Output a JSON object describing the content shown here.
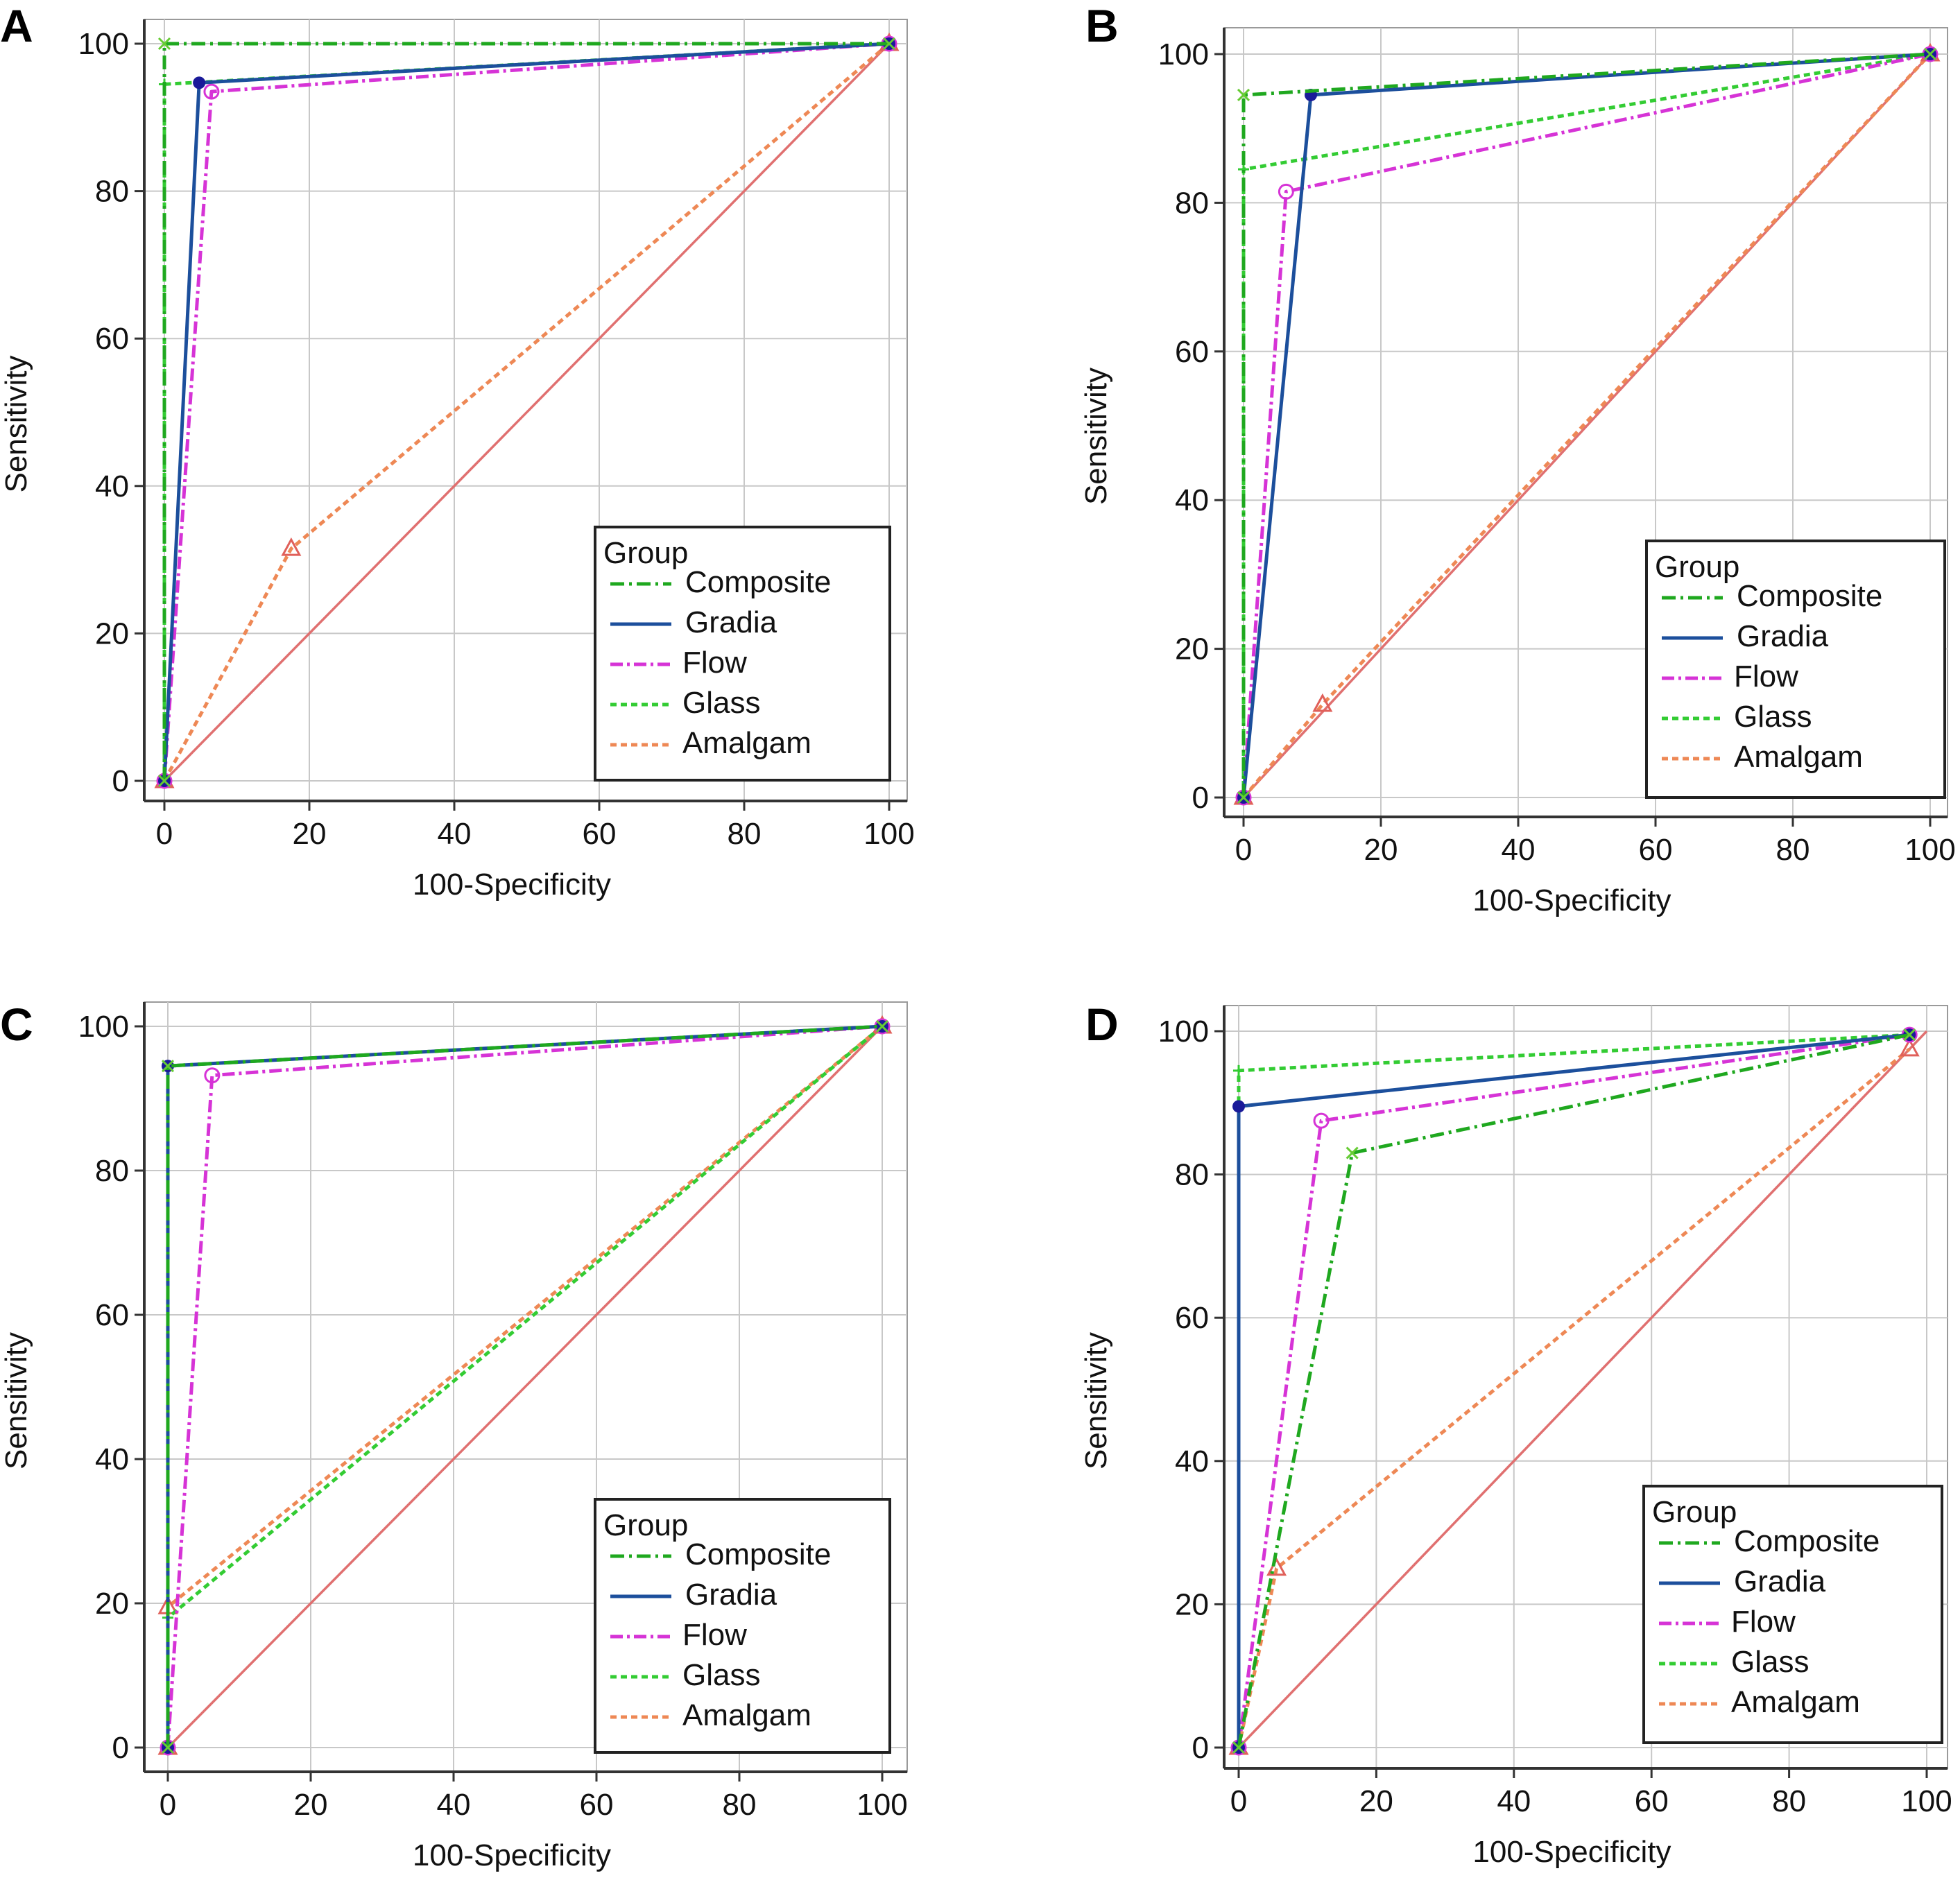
{
  "chart_data": [
    {
      "type": "line",
      "panel": "A",
      "xlabel": "100-Specificity",
      "ylabel": "Sensitivity",
      "xlim": [
        0,
        100
      ],
      "ylim": [
        0,
        100
      ],
      "xticks": [
        "0",
        "20",
        "40",
        "60",
        "80",
        "100"
      ],
      "yticks": [
        "0",
        "20",
        "40",
        "60",
        "80",
        "100"
      ],
      "grid": true,
      "legend_title": "Group",
      "legend_position": "bottom-right",
      "series": [
        {
          "name": "Composite",
          "x": [
            0,
            0,
            100
          ],
          "y": [
            0,
            100,
            100
          ]
        },
        {
          "name": "Gradia",
          "x": [
            0,
            4.8,
            100
          ],
          "y": [
            0,
            94.7,
            100
          ]
        },
        {
          "name": "Flow",
          "x": [
            0,
            6.5,
            100
          ],
          "y": [
            0,
            93.5,
            100
          ]
        },
        {
          "name": "Glass",
          "x": [
            0,
            0,
            100
          ],
          "y": [
            0,
            94.5,
            100
          ]
        },
        {
          "name": "Amalgam",
          "x": [
            0,
            17.5,
            100
          ],
          "y": [
            0,
            31.5,
            100
          ]
        }
      ]
    },
    {
      "type": "line",
      "panel": "B",
      "xlabel": "100-Specificity",
      "ylabel": "Sensitivity",
      "xlim": [
        0,
        100
      ],
      "ylim": [
        0,
        100
      ],
      "xticks": [
        "0",
        "20",
        "40",
        "60",
        "80",
        "100"
      ],
      "yticks": [
        "0",
        "20",
        "40",
        "60",
        "80",
        "100"
      ],
      "grid": true,
      "legend_title": "Group",
      "legend_position": "bottom-right",
      "series": [
        {
          "name": "Composite",
          "x": [
            0,
            0,
            100
          ],
          "y": [
            0,
            94.5,
            100
          ]
        },
        {
          "name": "Gradia",
          "x": [
            0,
            9.8,
            100
          ],
          "y": [
            0,
            94.5,
            100
          ]
        },
        {
          "name": "Flow",
          "x": [
            0,
            6.2,
            100
          ],
          "y": [
            0,
            81.5,
            100
          ]
        },
        {
          "name": "Glass",
          "x": [
            0,
            0,
            100
          ],
          "y": [
            0,
            84.5,
            100
          ]
        },
        {
          "name": "Amalgam",
          "x": [
            0,
            11.5,
            100
          ],
          "y": [
            0,
            12.5,
            100
          ]
        }
      ]
    },
    {
      "type": "line",
      "panel": "C",
      "xlabel": "100-Specificity",
      "ylabel": "Sensitivity",
      "xlim": [
        0,
        100
      ],
      "ylim": [
        0,
        100
      ],
      "xticks": [
        "0",
        "20",
        "40",
        "60",
        "80",
        "100"
      ],
      "yticks": [
        "0",
        "20",
        "40",
        "60",
        "80",
        "100"
      ],
      "grid": true,
      "legend_title": "Group",
      "legend_position": "bottom-right",
      "series": [
        {
          "name": "Composite",
          "x": [
            0,
            0,
            100
          ],
          "y": [
            0,
            94.5,
            100
          ]
        },
        {
          "name": "Gradia",
          "x": [
            0,
            0,
            100
          ],
          "y": [
            0,
            94.5,
            100
          ]
        },
        {
          "name": "Flow",
          "x": [
            0,
            6.2,
            100
          ],
          "y": [
            0,
            93.2,
            100
          ]
        },
        {
          "name": "Glass",
          "x": [
            0,
            0,
            100
          ],
          "y": [
            0,
            18,
            100
          ]
        },
        {
          "name": "Amalgam",
          "x": [
            0,
            0,
            100
          ],
          "y": [
            0,
            19.5,
            100
          ]
        }
      ]
    },
    {
      "type": "line",
      "panel": "D",
      "xlabel": "100-Specificity",
      "ylabel": "Sensitivity",
      "xlim": [
        0,
        100
      ],
      "ylim": [
        0,
        100
      ],
      "xticks": [
        "0",
        "20",
        "40",
        "60",
        "80",
        "100"
      ],
      "yticks": [
        "0",
        "20",
        "40",
        "60",
        "80",
        "100"
      ],
      "grid": true,
      "legend_title": "Group",
      "legend_position": "bottom-right",
      "series": [
        {
          "name": "Composite",
          "x": [
            0,
            16.5,
            97.5
          ],
          "y": [
            0,
            83,
            99.5
          ]
        },
        {
          "name": "Gradia",
          "x": [
            0,
            0,
            97.5
          ],
          "y": [
            0,
            89.5,
            99.5
          ]
        },
        {
          "name": "Flow",
          "x": [
            0,
            12,
            97.5
          ],
          "y": [
            0,
            87.5,
            99.5
          ]
        },
        {
          "name": "Glass",
          "x": [
            0,
            0,
            97.5
          ],
          "y": [
            0,
            94.5,
            99.5
          ]
        },
        {
          "name": "Amalgam",
          "x": [
            0,
            5.5,
            97.5
          ],
          "y": [
            0,
            25,
            97.5
          ]
        }
      ]
    }
  ],
  "style": {
    "colors": {
      "Composite": "#1fa81f",
      "Gradia": "#1c4f9c",
      "Flow": "#d633d6",
      "Glass": "#33cc33",
      "Amalgam": "#ee8855",
      "diagonal": "#e07070",
      "grid": "#c8c8c8",
      "axis": "#333333",
      "frame": "#444444"
    },
    "dash": {
      "Composite": "20,7,4,7",
      "Gradia": "",
      "Flow": "18,6,4,6",
      "Glass": "9,6",
      "Amalgam": "9,6"
    }
  }
}
